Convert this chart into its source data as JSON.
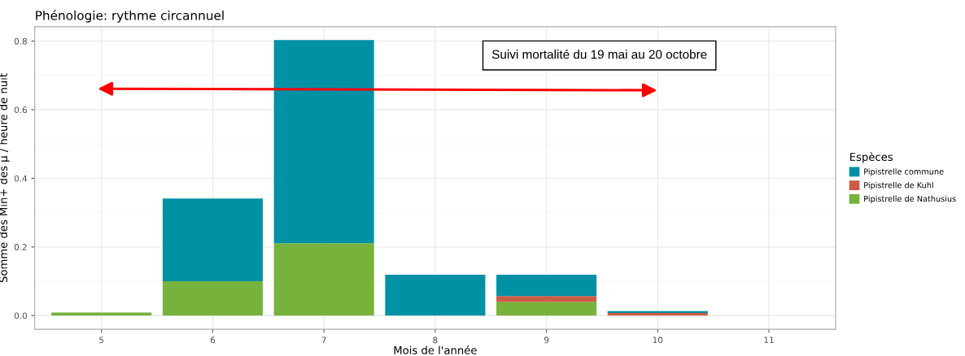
{
  "chart_data": {
    "type": "bar",
    "stacked": true,
    "title": "Phénologie: rythme circannuel",
    "xlabel": "Mois de l'année",
    "ylabel": "Somme des Min+ des µ / heure de nuit",
    "legend_title": "Espèces",
    "categories": [
      "5",
      "6",
      "7",
      "8",
      "9",
      "10",
      "11"
    ],
    "series": [
      {
        "name": "Pipistrelle de Nathusius",
        "color": "#76b23c",
        "values": [
          0.009,
          0.1,
          0.211,
          0,
          0.04,
          0,
          null
        ]
      },
      {
        "name": "Pipistrelle de Kuhl",
        "color": "#cd5b45",
        "values": [
          0,
          0,
          0,
          0,
          0.017,
          0.008,
          null
        ]
      },
      {
        "name": "Pipistrelle commune",
        "color": "#0091a5",
        "values": [
          0,
          0.241,
          0.592,
          0.119,
          0.062,
          0.005,
          null
        ]
      }
    ],
    "ylim": [
      -0.04,
      0.842
    ],
    "yticks": [
      {
        "value": 0,
        "label": "0.0"
      },
      {
        "value": 0.2,
        "label": "0.2"
      },
      {
        "value": 0.4,
        "label": "0.4"
      },
      {
        "value": 0.6,
        "label": "0.6"
      },
      {
        "value": 0.8,
        "label": "0.8"
      }
    ],
    "grid": true,
    "legend": "right",
    "annotations": [
      "Suivi mortalité du 19 mai au 20 octobre"
    ]
  }
}
